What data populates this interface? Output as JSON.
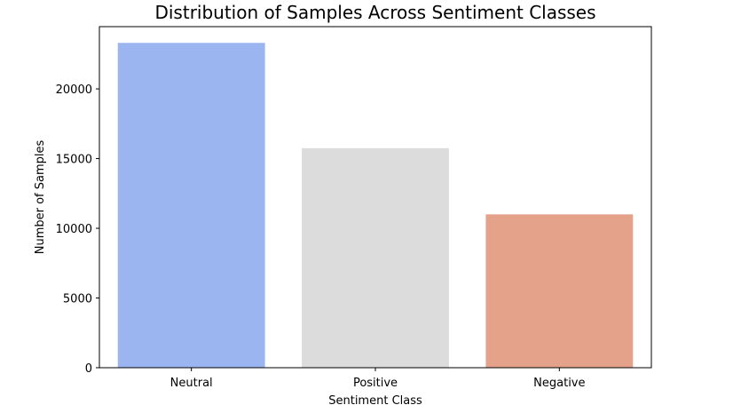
{
  "chart_data": {
    "type": "bar",
    "title": "Distribution of Samples Across Sentiment Classes",
    "xlabel": "Sentiment Class",
    "ylabel": "Number of Samples",
    "categories": [
      "Neutral",
      "Positive",
      "Negative"
    ],
    "values": [
      23300,
      15750,
      11000
    ],
    "colors": [
      "#9bb5f0",
      "#dcdcdc",
      "#e5a28b"
    ],
    "ylim": [
      0,
      24465
    ],
    "yticks": [
      0,
      5000,
      10000,
      15000,
      20000
    ],
    "grid": false,
    "legend": "none"
  }
}
